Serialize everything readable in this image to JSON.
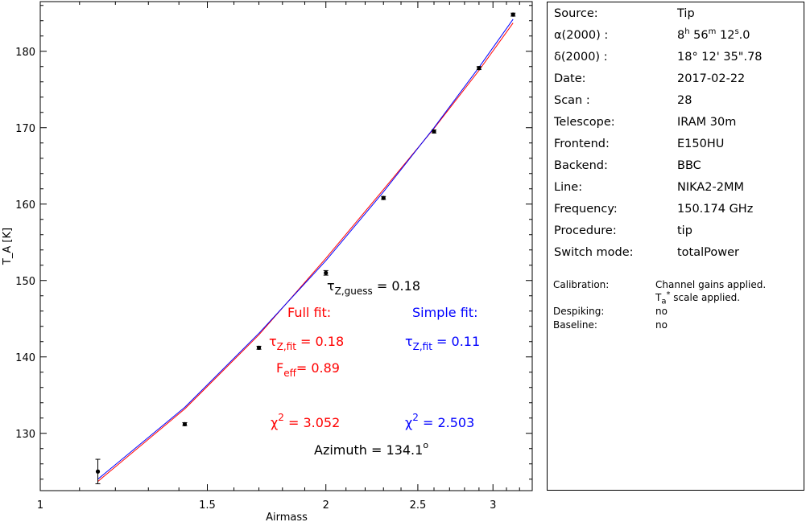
{
  "chart_data": {
    "type": "scatter",
    "xlabel": "Airmass",
    "ylabel": "T_A [K]",
    "xscale": "log",
    "xlim": [
      1.0,
      3.3
    ],
    "ylim": [
      122.5,
      186.5
    ],
    "x_ticks": [
      1,
      1.5,
      2,
      2.5,
      3
    ],
    "x_tick_labels": [
      "1",
      "1.5",
      "2",
      "2.5",
      "3"
    ],
    "y_ticks": [
      130,
      140,
      150,
      160,
      170,
      180
    ],
    "y_tick_labels": [
      "130",
      "140",
      "150",
      "160",
      "170",
      "180"
    ],
    "points": [
      {
        "x": 1.15,
        "y": 125.0,
        "err": 1.6
      },
      {
        "x": 1.42,
        "y": 131.2,
        "err": 0.2
      },
      {
        "x": 1.7,
        "y": 141.2,
        "err": 0.2
      },
      {
        "x": 2.0,
        "y": 151.0,
        "err": 0.3
      },
      {
        "x": 2.3,
        "y": 160.8,
        "err": 0.2
      },
      {
        "x": 2.6,
        "y": 169.5,
        "err": 0.2
      },
      {
        "x": 2.9,
        "y": 177.8,
        "err": 0.2
      },
      {
        "x": 3.15,
        "y": 184.8,
        "err": 0.2
      }
    ],
    "fits": [
      {
        "x": [
          1.15,
          1.42,
          1.7,
          2.0,
          2.3,
          2.6,
          2.9,
          3.15
        ],
        "y": [
          123.7,
          133.2,
          142.9,
          152.9,
          161.9,
          169.9,
          177.5,
          183.7
        ],
        "color": "#ff0000"
      },
      {
        "x": [
          1.15,
          1.42,
          1.7,
          2.0,
          2.3,
          2.6,
          2.9,
          3.15
        ],
        "y": [
          124.0,
          133.4,
          143.1,
          152.6,
          161.6,
          170.0,
          177.9,
          184.2
        ],
        "color": "#0000ff"
      }
    ],
    "colors": {
      "full_fit": "#ff0000",
      "simple_fit": "#0000ff",
      "points": "#000000"
    },
    "annotations": {
      "tau_guess": {
        "base": "τ",
        "sub": "Z,guess",
        "text": " = 0.18"
      },
      "full_fit_title": "Full fit:",
      "simple_fit_title": "Simple fit:",
      "full_tau": {
        "base": "τ",
        "sub": "Z,fit",
        "text": " = 0.18"
      },
      "simple_tau": {
        "base": "τ",
        "sub": "Z,fit",
        "text": " = 0.11"
      },
      "feff": {
        "base": "F",
        "sub": "eff",
        "text": "= 0.89"
      },
      "full_chi2": {
        "base": "χ",
        "sup": "2",
        "text": " = 3.052"
      },
      "simple_chi2": {
        "base": "χ",
        "sup": "2",
        "text": " = 2.503"
      },
      "azimuth": {
        "text": "Azimuth = 134.1",
        "sup": "o"
      }
    }
  },
  "info": {
    "rows": [
      {
        "key": "Source:",
        "value": "Tip"
      },
      {
        "key": "α(2000) :",
        "value": "8h 56m 12s.0"
      },
      {
        "key": "δ(2000) :",
        "value": "18° 12' 35\".78"
      },
      {
        "key": "Date:",
        "value": "2017-02-22"
      },
      {
        "key": "Scan :",
        "value": "28"
      },
      {
        "key": "Telescope:",
        "value": "IRAM 30m"
      },
      {
        "key": "Frontend:",
        "value": "E150HU"
      },
      {
        "key": "Backend:",
        "value": "BBC"
      },
      {
        "key": "Line:",
        "value": "NIKA2-2MM"
      },
      {
        "key": "Frequency:",
        "value": "150.174 GHz"
      },
      {
        "key": "Procedure:",
        "value": "tip"
      },
      {
        "key": "Switch mode:",
        "value": "totalPower"
      }
    ],
    "ra_parts": {
      "h": "8",
      "hs": "h",
      "m": " 56",
      "ms": "m",
      "s": " 12",
      "ss": "s",
      "tail": ".0"
    },
    "calibration": {
      "key": "Calibration:",
      "line1": "Channel gains applied.",
      "line2_pre": "T",
      "line2_sub": "a",
      "line2_sup": "*",
      "line2_post": " scale applied."
    },
    "despiking": {
      "key": "Despiking:",
      "value": "no"
    },
    "baseline": {
      "key": "Baseline:",
      "value": "no"
    }
  }
}
